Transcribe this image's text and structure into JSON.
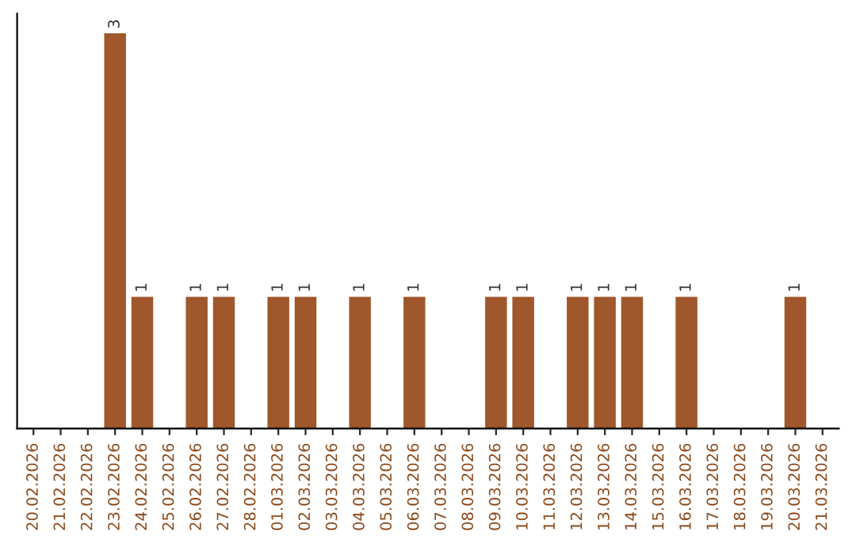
{
  "chart_data": {
    "type": "bar",
    "categories": [
      "20.02.2026",
      "21.02.2026",
      "22.02.2026",
      "23.02.2026",
      "24.02.2026",
      "25.02.2026",
      "26.02.2026",
      "27.02.2026",
      "28.02.2026",
      "01.03.2026",
      "02.03.2026",
      "03.03.2026",
      "04.03.2026",
      "05.03.2026",
      "06.03.2026",
      "07.03.2026",
      "08.03.2026",
      "09.03.2026",
      "10.03.2026",
      "11.03.2026",
      "12.03.2026",
      "13.03.2026",
      "14.03.2026",
      "15.03.2026",
      "16.03.2026",
      "17.03.2026",
      "18.03.2026",
      "19.03.2026",
      "20.03.2026",
      "21.03.2026"
    ],
    "values": [
      null,
      null,
      null,
      3,
      1,
      null,
      1,
      1,
      null,
      1,
      1,
      null,
      1,
      null,
      1,
      null,
      null,
      1,
      1,
      null,
      1,
      1,
      1,
      null,
      1,
      null,
      null,
      null,
      1,
      null
    ],
    "color": "#a0572b",
    "data_labels": true,
    "tick_labels": "x",
    "grid": false,
    "legend": false
  }
}
